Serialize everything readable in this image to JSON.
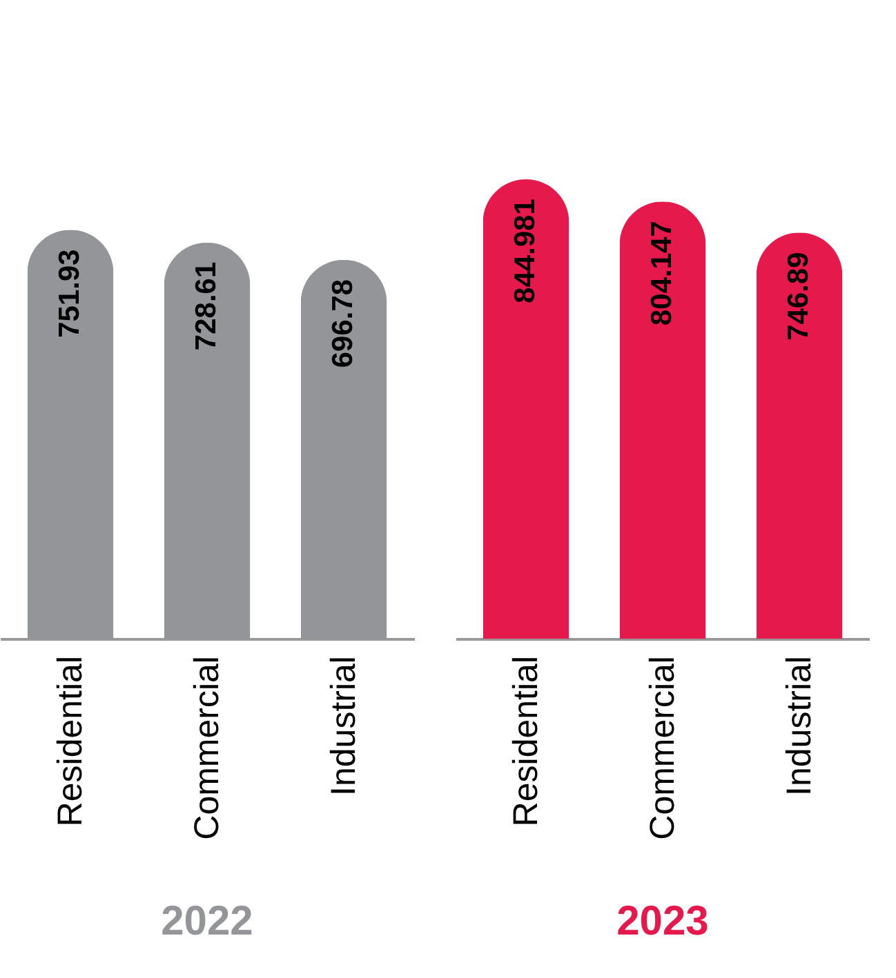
{
  "chart_data": [
    {
      "type": "bar",
      "title": "2022",
      "categories": [
        "Residential",
        "Commercial",
        "Industrial"
      ],
      "values": [
        751.93,
        728.61,
        696.78
      ],
      "color": "#939598",
      "data_labels": true
    },
    {
      "type": "bar",
      "title": "2023",
      "categories": [
        "Residential",
        "Commercial",
        "Industrial"
      ],
      "values": [
        844.981,
        804.147,
        746.89
      ],
      "color": "#e5194c",
      "data_labels": true
    }
  ]
}
